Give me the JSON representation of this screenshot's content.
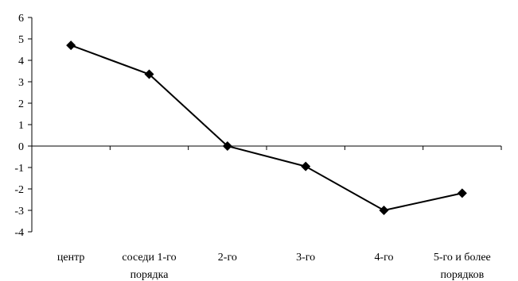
{
  "chart_data": {
    "type": "line",
    "title": "",
    "xlabel": "",
    "ylabel": "",
    "categories": [
      [
        "центр"
      ],
      [
        "соседи 1-го",
        "порядка"
      ],
      [
        "2-го"
      ],
      [
        "3-го"
      ],
      [
        "4-го"
      ],
      [
        "5-го и более",
        "порядков"
      ]
    ],
    "series": [
      {
        "values": [
          4.7,
          3.35,
          0.0,
          -0.95,
          -3.0,
          -2.2
        ]
      }
    ],
    "ylim": [
      -4,
      6
    ],
    "yticks": [
      6,
      5,
      4,
      3,
      2,
      1,
      0,
      -1,
      -2,
      -3,
      -4
    ],
    "grid": false,
    "legend": "none",
    "marker": "diamond",
    "line_color": "#000000"
  }
}
